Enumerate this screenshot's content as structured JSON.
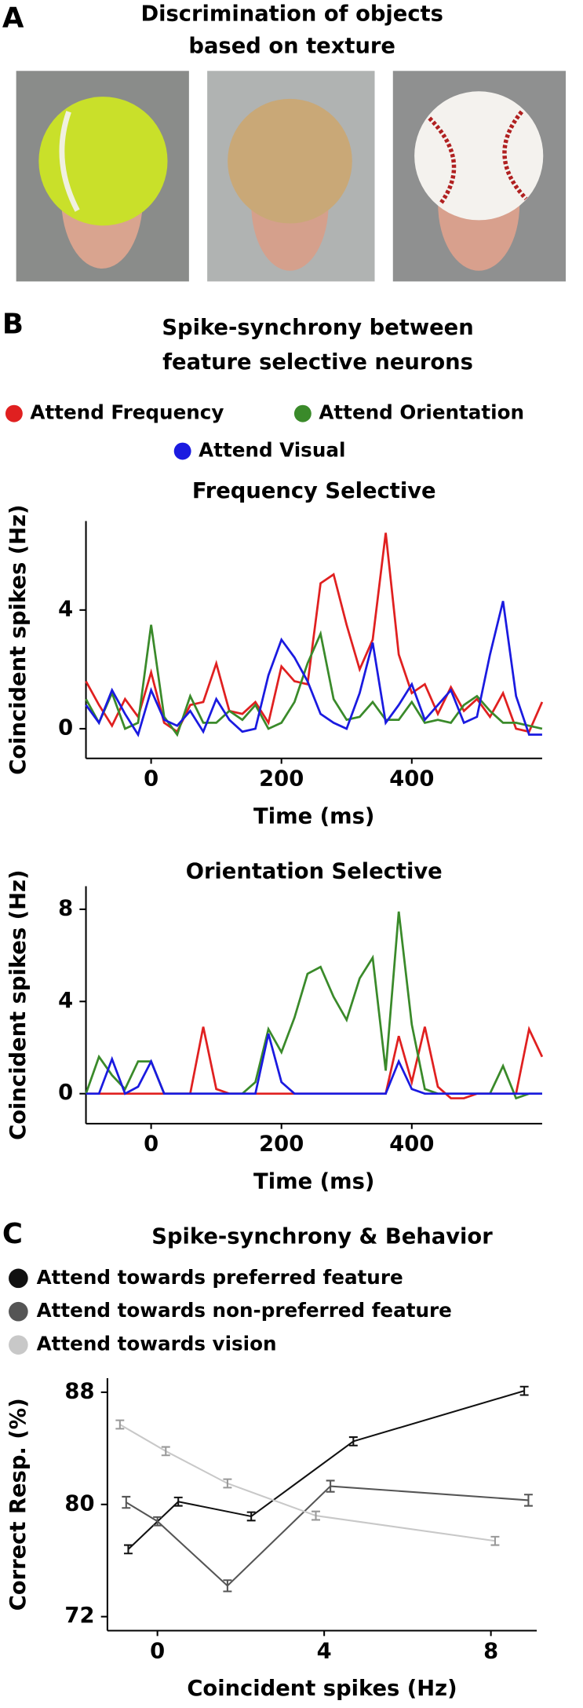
{
  "panels": {
    "a": {
      "label": "A",
      "title": [
        "Discrimination of objects",
        "based on texture"
      ]
    },
    "b": {
      "label": "B",
      "title": [
        "Spike-synchrony between",
        "feature selective neurons"
      ],
      "legend": [
        {
          "name": "Attend Frequency",
          "color": "#e02020"
        },
        {
          "name": "Attend Orientation",
          "color": "#3a8a2a"
        },
        {
          "name": "Attend Visual",
          "color": "#1a1ae0"
        }
      ]
    },
    "c": {
      "label": "C"
    }
  },
  "chart_data": [
    {
      "type": "line",
      "title": "Frequency Selective",
      "x_label": "Time (ms)",
      "y_label": "Coincident spikes (Hz)",
      "x": [
        -100,
        -80,
        -60,
        -40,
        -20,
        0,
        20,
        40,
        60,
        80,
        100,
        120,
        140,
        160,
        180,
        200,
        220,
        240,
        260,
        280,
        300,
        320,
        340,
        360,
        380,
        400,
        420,
        440,
        460,
        480,
        500,
        520,
        540,
        560,
        580,
        600
      ],
      "xlim": [
        -100,
        600
      ],
      "xticks": [
        0,
        200,
        400
      ],
      "ylim": [
        -1,
        7
      ],
      "yticks": [
        0,
        4
      ],
      "series": [
        {
          "color": "#e02020",
          "values": [
            1.6,
            0.8,
            0.1,
            1.0,
            0.4,
            1.9,
            0.2,
            -0.1,
            0.8,
            0.9,
            2.2,
            0.6,
            0.5,
            0.9,
            0.2,
            2.1,
            1.6,
            1.5,
            4.9,
            5.2,
            3.5,
            2.0,
            3.0,
            6.6,
            2.5,
            1.2,
            1.5,
            0.5,
            1.4,
            0.6,
            1.0,
            0.4,
            1.2,
            0.0,
            -0.1,
            0.9
          ]
        },
        {
          "color": "#3a8a2a",
          "values": [
            1.0,
            0.2,
            1.2,
            0.0,
            0.2,
            3.5,
            0.4,
            -0.2,
            1.1,
            0.2,
            0.2,
            0.6,
            0.3,
            0.8,
            0.0,
            0.2,
            0.9,
            2.2,
            3.2,
            1.0,
            0.3,
            0.4,
            0.9,
            0.3,
            0.3,
            0.9,
            0.2,
            0.3,
            0.2,
            0.8,
            1.1,
            0.6,
            0.2,
            0.2,
            0.1,
            0.0
          ]
        },
        {
          "color": "#1a1ae0",
          "values": [
            0.8,
            0.2,
            1.3,
            0.5,
            -0.2,
            1.3,
            0.3,
            0.1,
            0.6,
            -0.1,
            1.0,
            0.3,
            -0.1,
            0.0,
            1.8,
            3.0,
            2.4,
            1.6,
            0.5,
            0.2,
            0.0,
            1.2,
            2.9,
            0.2,
            0.8,
            1.5,
            0.3,
            0.8,
            1.3,
            0.2,
            0.4,
            2.5,
            4.3,
            1.1,
            -0.2,
            -0.2
          ]
        }
      ]
    },
    {
      "type": "line",
      "title": "Orientation Selective",
      "x_label": "Time (ms)",
      "y_label": "Coincident spikes (Hz)",
      "x": [
        -100,
        -80,
        -60,
        -40,
        -20,
        0,
        20,
        40,
        60,
        80,
        100,
        120,
        140,
        160,
        180,
        200,
        220,
        240,
        260,
        280,
        300,
        320,
        340,
        360,
        380,
        400,
        420,
        440,
        460,
        480,
        500,
        520,
        540,
        560,
        580,
        600
      ],
      "xlim": [
        -100,
        600
      ],
      "xticks": [
        0,
        200,
        400
      ],
      "ylim": [
        -1.3,
        9
      ],
      "yticks": [
        0,
        4,
        8
      ],
      "series": [
        {
          "color": "#e02020",
          "values": [
            0,
            0,
            0,
            0,
            0,
            0,
            0,
            0,
            0,
            2.9,
            0.2,
            0,
            0,
            0,
            0,
            0,
            0,
            0,
            0,
            0,
            0,
            0,
            0,
            0.0,
            2.5,
            0.5,
            2.9,
            0.3,
            -0.2,
            -0.2,
            0,
            0,
            0,
            0.0,
            2.8,
            1.6
          ]
        },
        {
          "color": "#3a8a2a",
          "values": [
            0,
            1.6,
            0.8,
            0.2,
            1.4,
            1.4,
            0.0,
            0,
            0,
            0,
            0,
            0,
            0,
            0.5,
            2.8,
            1.8,
            3.3,
            5.2,
            5.5,
            4.2,
            3.2,
            5.0,
            5.9,
            1.0,
            7.9,
            3.0,
            0.2,
            0,
            0,
            0,
            0,
            0.0,
            1.2,
            -0.2,
            0,
            0
          ]
        },
        {
          "color": "#1a1ae0",
          "values": [
            0,
            0,
            1.5,
            0.0,
            0.3,
            1.4,
            0.0,
            0,
            0,
            0,
            0,
            0,
            0,
            0,
            2.6,
            0.5,
            0.0,
            0,
            0,
            0,
            0,
            0,
            0,
            0,
            1.4,
            0.2,
            0,
            0,
            0,
            0,
            0,
            0,
            0,
            0,
            0,
            0
          ]
        }
      ]
    },
    {
      "type": "line_error",
      "title": "Spike-synchrony & Behavior",
      "x_label": "Coincident spikes (Hz)",
      "y_label": "Correct Resp. (%)",
      "xlim": [
        -1.2,
        9.1
      ],
      "xticks": [
        0,
        4,
        8
      ],
      "ylim": [
        71,
        89
      ],
      "yticks": [
        72,
        80,
        88
      ],
      "series": [
        {
          "name": "Attend towards preferred feature",
          "color": "#111111",
          "x": [
            -0.7,
            0.5,
            2.25,
            4.7,
            8.8
          ],
          "values": [
            76.8,
            80.2,
            79.15,
            84.5,
            88.1
          ],
          "errors": [
            0.3,
            0.3,
            0.3,
            0.3,
            0.3
          ]
        },
        {
          "name": "Attend towards non-preferred feature",
          "color": "#555555",
          "x": [
            -0.75,
            0.0,
            1.68,
            4.15,
            8.9
          ],
          "values": [
            80.15,
            78.8,
            74.2,
            81.3,
            80.3
          ],
          "errors": [
            0.4,
            0.3,
            0.4,
            0.4,
            0.4
          ]
        },
        {
          "name": "Attend towards vision",
          "color": "#c8c8c8",
          "x": [
            -0.9,
            0.2,
            1.68,
            3.8,
            8.1
          ],
          "values": [
            85.7,
            83.8,
            81.5,
            79.2,
            77.4
          ],
          "errors": [
            0.3,
            0.3,
            0.3,
            0.3,
            0.3
          ]
        }
      ]
    }
  ]
}
